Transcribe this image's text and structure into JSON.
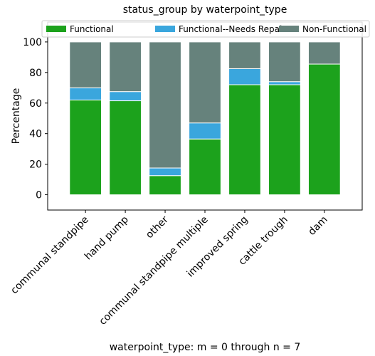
{
  "chart_data": {
    "type": "bar",
    "stacked": true,
    "title": "status_group by waterpoint_type",
    "xlabel": "waterpoint_type: m = 0 through n = 7",
    "ylabel": "Percentage",
    "ylim": [
      -10,
      113
    ],
    "yticks": [
      0,
      20,
      40,
      60,
      80,
      100
    ],
    "grid": false,
    "legend_position": "top",
    "categories": [
      "communal standpipe",
      "hand pump",
      "other",
      "communal standpipe multiple",
      "improved spring",
      "cattle trough",
      "dam"
    ],
    "series": [
      {
        "name": "Functional",
        "color": "#1ca21c",
        "values": [
          62,
          61.5,
          12.5,
          36.5,
          72,
          72,
          85.5
        ]
      },
      {
        "name": "Functional--Needs Repair",
        "color": "#3aa6dd",
        "values": [
          8,
          6,
          5,
          10.5,
          10.5,
          2,
          0
        ]
      },
      {
        "name": "Non-Functional",
        "color": "#66827c",
        "values": [
          30,
          32.5,
          82.5,
          53,
          17.5,
          26,
          14.5
        ]
      }
    ]
  }
}
